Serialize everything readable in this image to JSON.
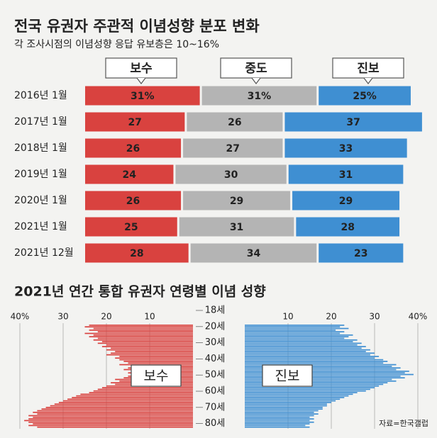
{
  "chart_data": [
    {
      "type": "stacked-bar",
      "title": "전국 유권자 주관적 이념성향 분포 변화",
      "subtitle": "각 조사시점의 이념성향 응답 유보층은 10~16%",
      "categories": [
        "2016년 1월",
        "2017년 1월",
        "2018년 1월",
        "2019년 1월",
        "2020년 1월",
        "2021년 1월",
        "2021년 12월"
      ],
      "series": [
        {
          "name": "보수",
          "color": "#d9423f",
          "values": [
            31,
            27,
            26,
            24,
            26,
            25,
            28
          ],
          "value_labels": [
            "31%",
            "27",
            "26",
            "24",
            "26",
            "25",
            "28"
          ]
        },
        {
          "name": "중도",
          "color": "#b4b4b4",
          "values": [
            31,
            26,
            27,
            30,
            29,
            31,
            34
          ],
          "value_labels": [
            "31%",
            "26",
            "27",
            "30",
            "29",
            "31",
            "34"
          ]
        },
        {
          "name": "진보",
          "color": "#3f8fd2",
          "values": [
            25,
            37,
            33,
            31,
            29,
            28,
            23
          ],
          "value_labels": [
            "25%",
            "37",
            "33",
            "31",
            "29",
            "28",
            "23"
          ]
        }
      ]
    },
    {
      "type": "pyramid",
      "title": "2021년 연간 통합 유권자 연령별 이념 성향",
      "source": "자료=한국갤럽",
      "categories": [
        "18세",
        null,
        "20세",
        null,
        null,
        null,
        null,
        null,
        null,
        null,
        null,
        null,
        "30세",
        null,
        null,
        null,
        null,
        null,
        null,
        null,
        null,
        null,
        "40세",
        null,
        null,
        null,
        null,
        null,
        null,
        null,
        null,
        null,
        "50세",
        null,
        null,
        null,
        null,
        null,
        null,
        null,
        null,
        null,
        "60세",
        null,
        null,
        null,
        null,
        null,
        null,
        null,
        null,
        null,
        "70세",
        null,
        null,
        null,
        null,
        null,
        null,
        null,
        null,
        null,
        "80세"
      ],
      "xlim": [
        0,
        40
      ],
      "xticks": [
        {
          "value": 40,
          "label": "40%"
        },
        30,
        20,
        10
      ],
      "x2ticks": [
        10,
        20,
        30,
        {
          "value": 40,
          "label": "40%"
        }
      ],
      "grid": true,
      "series": [
        {
          "name": "보수",
          "color": "#d9423f",
          "side": "left",
          "values": [
            24,
            25,
            23,
            24,
            22,
            25,
            23,
            24,
            22,
            23,
            21,
            22,
            20,
            21,
            19,
            20,
            18,
            19,
            20,
            17,
            18,
            17,
            16,
            15,
            17,
            14,
            15,
            16,
            14,
            15,
            13,
            15,
            16,
            18,
            17,
            19,
            18,
            20,
            21,
            22,
            23,
            24,
            26,
            27,
            28,
            29,
            30,
            31,
            32,
            33,
            34,
            35,
            36,
            37,
            36,
            38,
            37,
            38,
            39,
            38,
            37,
            38,
            36
          ]
        },
        {
          "name": "진보",
          "color": "#3f8fd2",
          "side": "right",
          "values": [
            23,
            22,
            24,
            21,
            23,
            22,
            25,
            24,
            23,
            26,
            25,
            27,
            26,
            28,
            27,
            29,
            28,
            30,
            29,
            31,
            30,
            32,
            33,
            32,
            35,
            34,
            36,
            35,
            38,
            37,
            39,
            36,
            37,
            34,
            35,
            33,
            32,
            31,
            30,
            29,
            28,
            26,
            25,
            24,
            23,
            22,
            21,
            20,
            19,
            19,
            18,
            18,
            17,
            16,
            17,
            16,
            15,
            16,
            15,
            16,
            15,
            14,
            15
          ]
        }
      ]
    }
  ]
}
